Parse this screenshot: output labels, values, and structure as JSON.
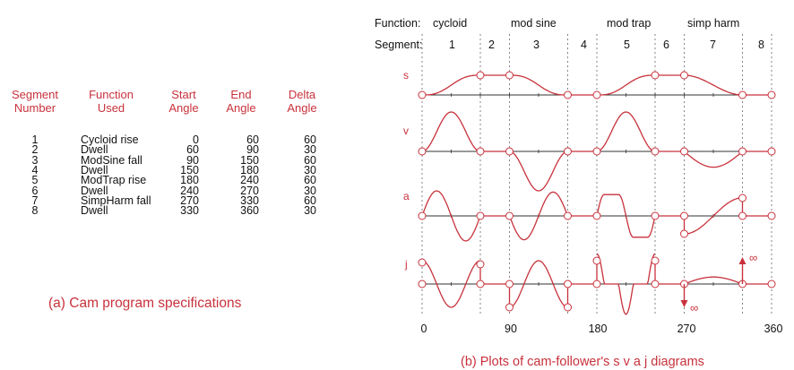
{
  "table": {
    "headers": [
      [
        "Segment",
        "Number"
      ],
      [
        "Function",
        "Used"
      ],
      [
        "Start",
        "Angle"
      ],
      [
        "End",
        "Angle"
      ],
      [
        "Delta",
        "Angle"
      ]
    ],
    "rows": [
      [
        "1",
        "Cycloid rise",
        "0",
        "60",
        "60"
      ],
      [
        "2",
        "Dwell",
        "60",
        "90",
        "30"
      ],
      [
        "3",
        "ModSine fall",
        "90",
        "150",
        "60"
      ],
      [
        "4",
        "Dwell",
        "150",
        "180",
        "30"
      ],
      [
        "5",
        "ModTrap rise",
        "180",
        "240",
        "60"
      ],
      [
        "6",
        "Dwell",
        "240",
        "270",
        "30"
      ],
      [
        "7",
        "SimpHarm fall",
        "270",
        "330",
        "60"
      ],
      [
        "8",
        "Dwell",
        "330",
        "360",
        "30"
      ]
    ]
  },
  "caption_a": "(a)  Cam program specifications",
  "caption_b": "(b)  Plots of cam-follower's  s v a j  diagrams",
  "function_row": {
    "label": "Function:",
    "items": [
      "cycloid",
      "mod sine",
      "mod trap",
      "simp harm"
    ]
  },
  "segment_row": {
    "label": "Segment:",
    "items": [
      "1",
      "2",
      "3",
      "4",
      "5",
      "6",
      "7",
      "8"
    ]
  },
  "plot_labels": [
    "s",
    "v",
    "a",
    "j"
  ],
  "x_axis": [
    "0",
    "90",
    "180",
    "270",
    "360"
  ],
  "infinity": "∞",
  "colors": {
    "accent": "#c8323c",
    "text": "#111111",
    "axis": "#333333"
  }
}
